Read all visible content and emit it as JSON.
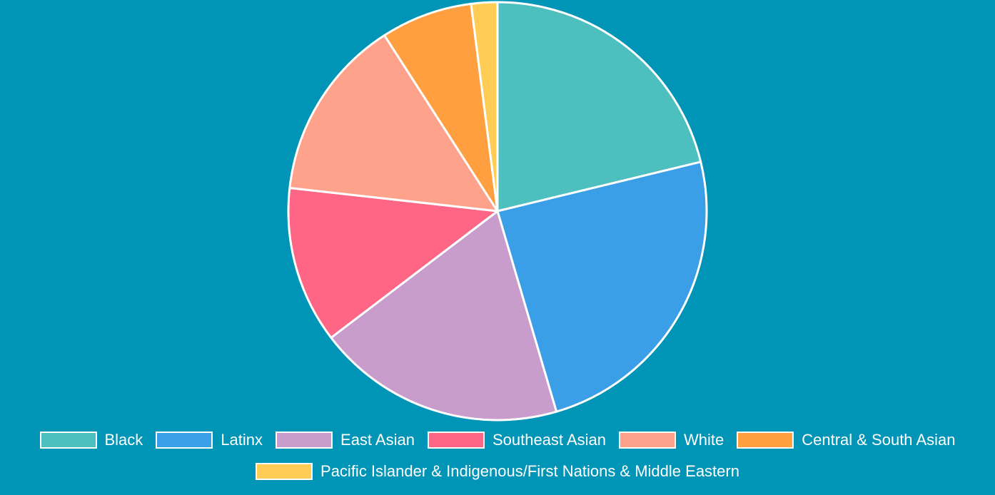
{
  "chart_data": {
    "type": "pie",
    "title": "",
    "categories": [
      "Black",
      "Latinx",
      "East Asian",
      "Southeast Asian",
      "White",
      "Central & South Asian",
      "Pacific Islander & Indigenous/First Nations & Middle Eastern"
    ],
    "values": [
      21,
      24,
      19,
      12,
      14,
      7,
      2
    ],
    "colors": [
      "#4dbfbf",
      "#3b9fe8",
      "#c89dcb",
      "#ff6584",
      "#ffa28c",
      "#ff9f40",
      "#ffcd56"
    ],
    "legend_position": "bottom",
    "border_color": "#ffffff"
  },
  "legend": [
    {
      "label": "Black",
      "color": "#4dbfbf"
    },
    {
      "label": "Latinx",
      "color": "#3b9fe8"
    },
    {
      "label": "East Asian",
      "color": "#c89dcb"
    },
    {
      "label": "Southeast Asian",
      "color": "#ff6584"
    },
    {
      "label": "White",
      "color": "#ffa28c"
    },
    {
      "label": "Central & South Asian",
      "color": "#ff9f40"
    },
    {
      "label": "Pacific Islander & Indigenous/First Nations & Middle Eastern",
      "color": "#ffcd56"
    }
  ]
}
